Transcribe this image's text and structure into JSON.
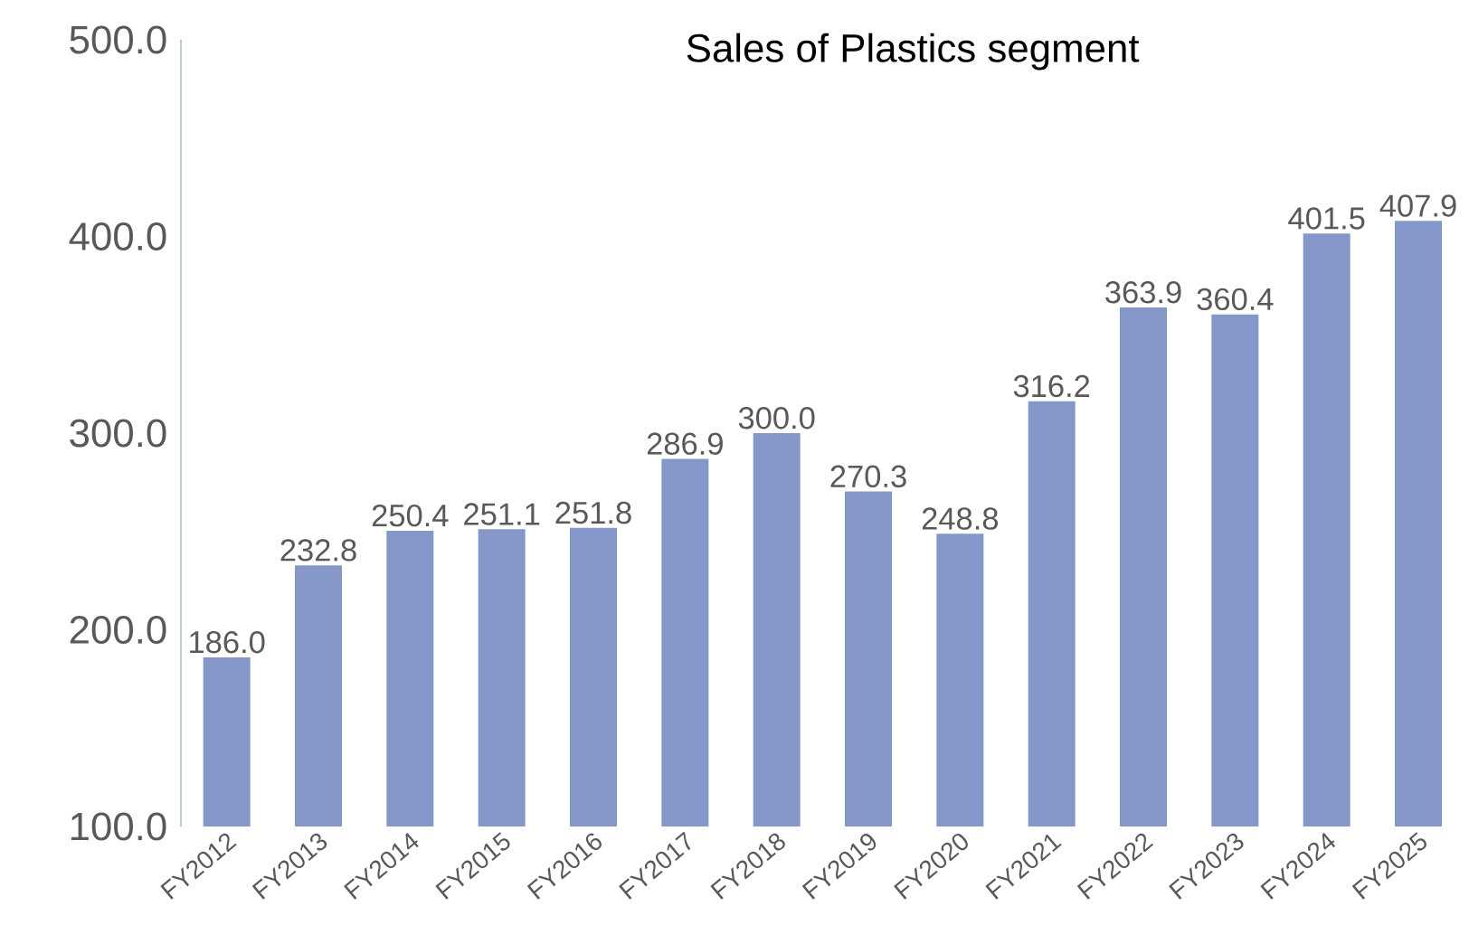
{
  "chart_data": {
    "type": "bar",
    "title": "Sales of  Plastics segment",
    "categories": [
      "FY2012",
      "FY2013",
      "FY2014",
      "FY2015",
      "FY2016",
      "FY2017",
      "FY2018",
      "FY2019",
      "FY2020",
      "FY2021",
      "FY2022",
      "FY2023",
      "FY2024",
      "FY2025"
    ],
    "values": [
      186.0,
      232.8,
      250.4,
      251.1,
      251.8,
      286.9,
      300.0,
      270.3,
      248.8,
      316.2,
      363.9,
      360.4,
      401.5,
      407.9
    ],
    "color": "#8497c8",
    "ylim": [
      100,
      500
    ],
    "yticks": [
      {
        "value": 100,
        "label": "100.0"
      },
      {
        "value": 200,
        "label": "200.0"
      },
      {
        "value": 300,
        "label": "300.0"
      },
      {
        "value": 400,
        "label": "400.0"
      },
      {
        "value": 500,
        "label": "500.0"
      }
    ],
    "value_labels": [
      "186.0",
      "232.8",
      "250.4",
      "251.1",
      "251.8",
      "286.9",
      "300.0",
      "270.3",
      "248.8",
      "316.2",
      "363.9",
      "360.4",
      "401.5",
      "407.9"
    ]
  }
}
